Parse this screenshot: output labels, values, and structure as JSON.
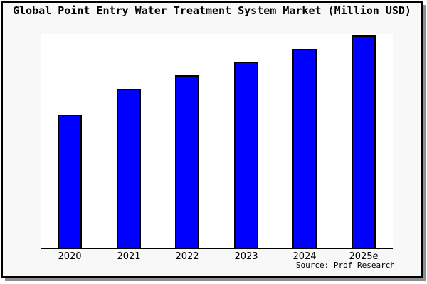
{
  "chart_data": {
    "type": "bar",
    "title": "Global Point Entry Water Treatment System Market (Million USD)",
    "source": "Source: Prof Research",
    "categories": [
      "2020",
      "2021",
      "2022",
      "2023",
      "2024",
      "2025e"
    ],
    "values": [
      62.8,
      75.2,
      81.4,
      87.7,
      93.7,
      100
    ],
    "values_note": "No y-axis or data labels shown; values are relative bar heights indexed to 2025e = 100",
    "xlabel": "",
    "ylabel": "",
    "ylim": [
      0,
      100.7
    ],
    "grid": false,
    "legend": false,
    "bar_color": "#0000fe",
    "bar_border_color": "#000000",
    "axis_color": "#000000",
    "plot_background": "#ffffff",
    "figure_background": "#f8f8f8",
    "frame_border_color": "#000000",
    "frame_shadow_color": "#8f8f8f"
  }
}
